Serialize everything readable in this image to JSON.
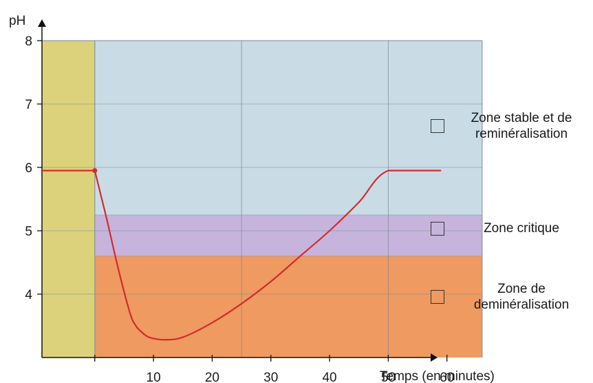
{
  "chart_data": {
    "type": "line",
    "xlabel": "Temps (en minutes)",
    "ylabel": "pH",
    "xlim": [
      -9,
      85
    ],
    "ylim": [
      3,
      8
    ],
    "x_ticks": [
      0,
      10,
      20,
      30,
      40,
      50,
      60
    ],
    "x_tick_labels": [
      "",
      "10",
      "20",
      "30",
      "40",
      "50",
      "60"
    ],
    "y_ticks": [
      4,
      5,
      6,
      7,
      8
    ],
    "y_tick_labels": [
      "4",
      "5",
      "6",
      "7",
      "8"
    ],
    "grid": true,
    "series": [
      {
        "color": "#d42a2a",
        "x": [
          -9,
          0,
          2,
          4,
          6,
          7,
          8,
          9,
          10,
          12,
          15,
          20,
          25,
          30,
          35,
          40,
          45,
          50,
          59
        ],
        "y": [
          5.95,
          5.95,
          5.2,
          4.4,
          3.7,
          3.5,
          3.4,
          3.33,
          3.3,
          3.28,
          3.32,
          3.55,
          3.85,
          4.2,
          4.6,
          5.0,
          5.45,
          5.95,
          5.95
        ]
      }
    ],
    "zones": [
      {
        "label": "Zone stable et de reminéralisation",
        "y_from": 5.25,
        "y_to": 8,
        "color": "#c9dce6"
      },
      {
        "label": "Zone critique",
        "y_from": 4.6,
        "y_to": 5.25,
        "color": "#c6b4dc"
      },
      {
        "label": "Zone de deminéralisation",
        "y_from": 3,
        "y_to": 4.6,
        "color": "#ef9a60"
      }
    ],
    "highlight_band": {
      "x_from": -9,
      "x_to": 0,
      "color": "#dcd27c"
    },
    "marker": {
      "x": 0,
      "y": 5.95
    },
    "plot_x_end": 66,
    "legend": "right"
  }
}
